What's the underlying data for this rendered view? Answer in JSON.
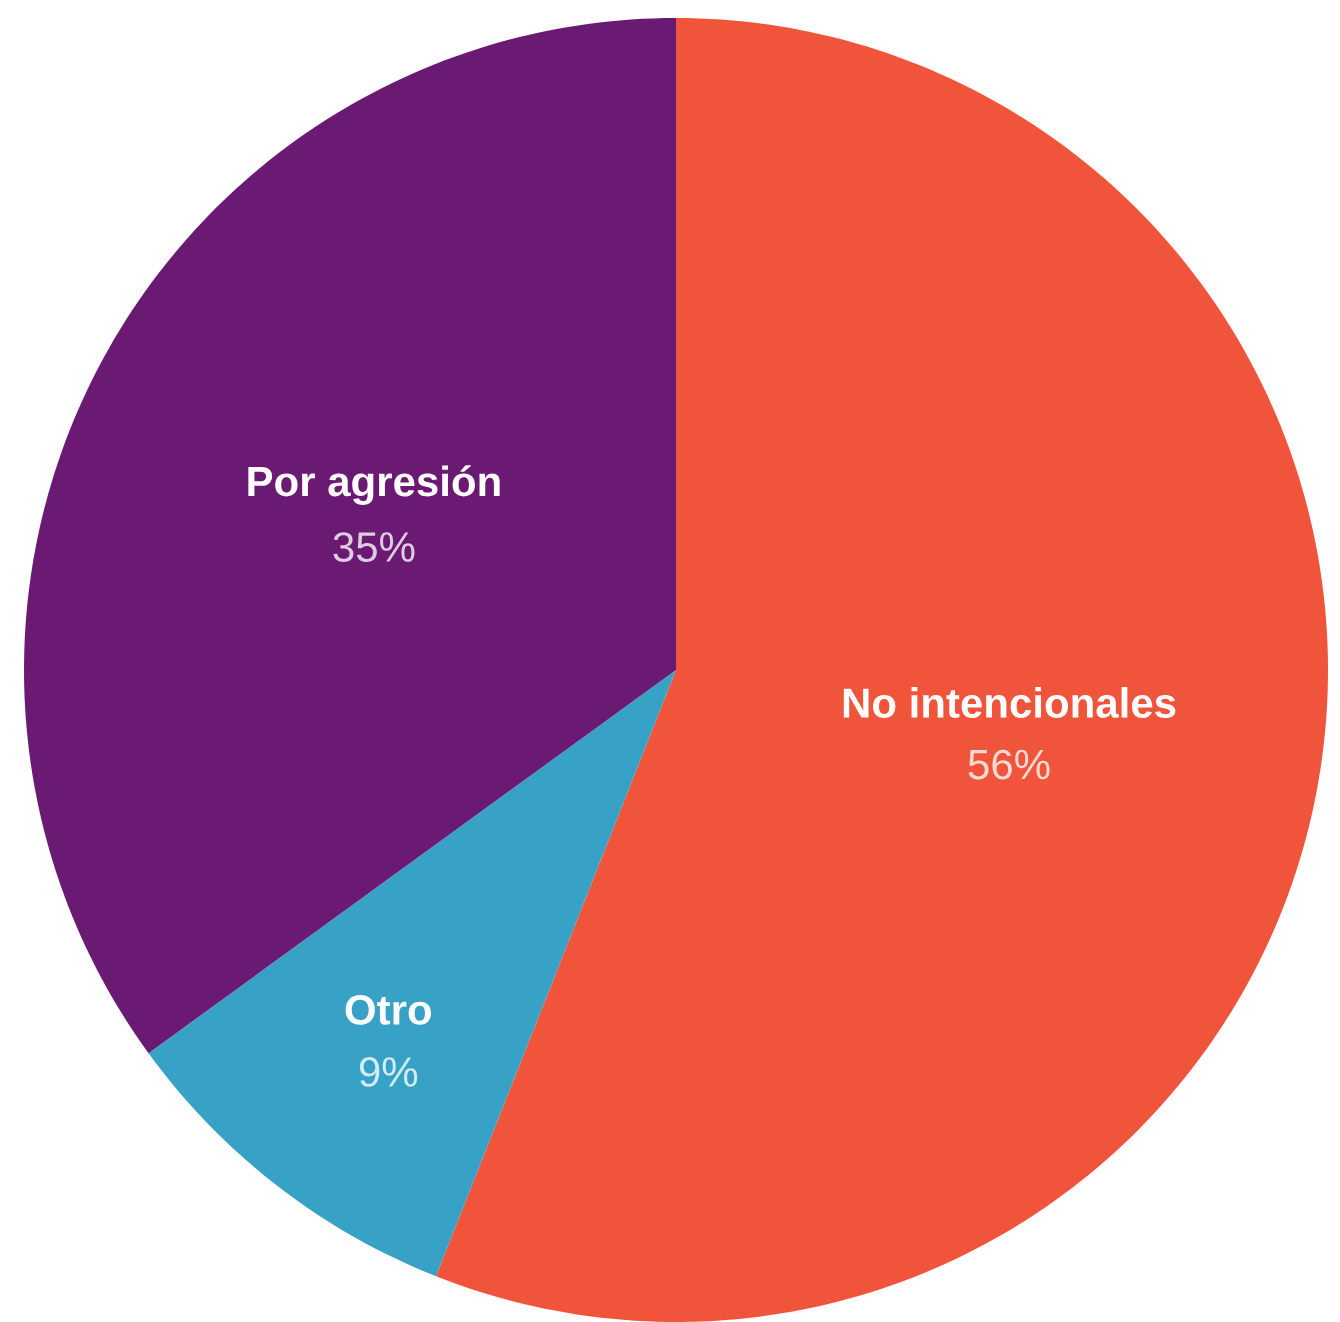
{
  "chart_data": {
    "type": "pie",
    "categories": [
      "No intencionales",
      "Otro",
      "Por agresión"
    ],
    "values": [
      56,
      9,
      35
    ],
    "value_labels": [
      "56%",
      "9%",
      "35%"
    ],
    "colors": [
      "#f0553c",
      "#37a2c6",
      "#6a1a72"
    ]
  }
}
